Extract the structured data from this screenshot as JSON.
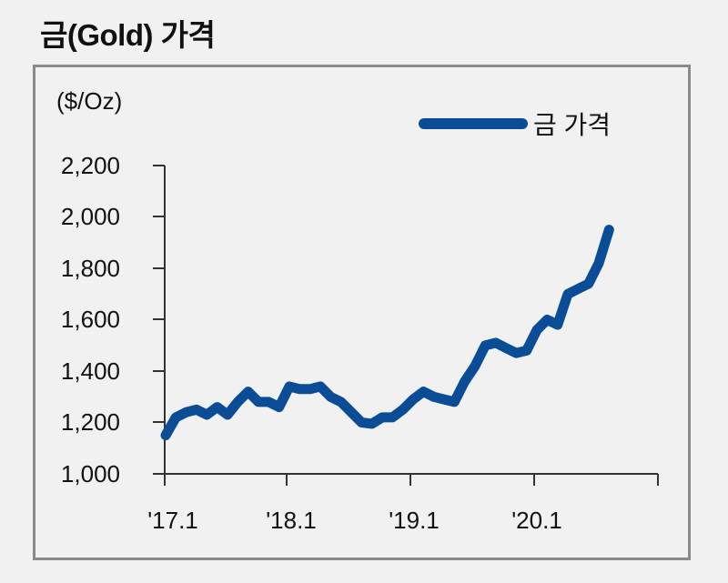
{
  "title": "금(Gold) 가격",
  "unit_label": "($/Oz)",
  "legend": {
    "label": "금 가격",
    "color": "#0a4c96"
  },
  "y_ticks": [
    "2,200",
    "2,000",
    "1,800",
    "1,600",
    "1,400",
    "1,200",
    "1,000"
  ],
  "x_ticks": [
    "'17.1",
    "'18.1",
    "'19.1",
    "'20.1"
  ],
  "chart_data": {
    "type": "line",
    "title": "금(Gold) 가격",
    "xlabel": "",
    "ylabel": "($/Oz)",
    "ylim": [
      1000,
      2200
    ],
    "yticks": [
      1000,
      1200,
      1400,
      1600,
      1800,
      2000,
      2200
    ],
    "xticks": [
      "'17.1",
      "'18.1",
      "'19.1",
      "'20.1"
    ],
    "grid": false,
    "legend_position": "top-right",
    "series": [
      {
        "name": "금 가격",
        "color": "#0a4c96",
        "x": [
          "2017-01",
          "2017-02",
          "2017-03",
          "2017-04",
          "2017-05",
          "2017-06",
          "2017-07",
          "2017-08",
          "2017-09",
          "2017-10",
          "2017-11",
          "2017-12",
          "2018-01",
          "2018-02",
          "2018-03",
          "2018-04",
          "2018-05",
          "2018-06",
          "2018-07",
          "2018-08",
          "2018-09",
          "2018-10",
          "2018-11",
          "2018-12",
          "2019-01",
          "2019-02",
          "2019-03",
          "2019-04",
          "2019-05",
          "2019-06",
          "2019-07",
          "2019-08",
          "2019-09",
          "2019-10",
          "2019-11",
          "2019-12",
          "2020-01",
          "2020-02",
          "2020-03",
          "2020-04",
          "2020-05",
          "2020-06",
          "2020-07",
          "2020-08"
        ],
        "values": [
          1150,
          1220,
          1240,
          1250,
          1230,
          1260,
          1230,
          1280,
          1320,
          1280,
          1280,
          1260,
          1340,
          1330,
          1330,
          1340,
          1300,
          1280,
          1240,
          1200,
          1195,
          1220,
          1220,
          1250,
          1290,
          1320,
          1300,
          1290,
          1280,
          1360,
          1420,
          1500,
          1510,
          1490,
          1470,
          1480,
          1560,
          1600,
          1580,
          1700,
          1720,
          1740,
          1820,
          1950
        ]
      }
    ]
  }
}
